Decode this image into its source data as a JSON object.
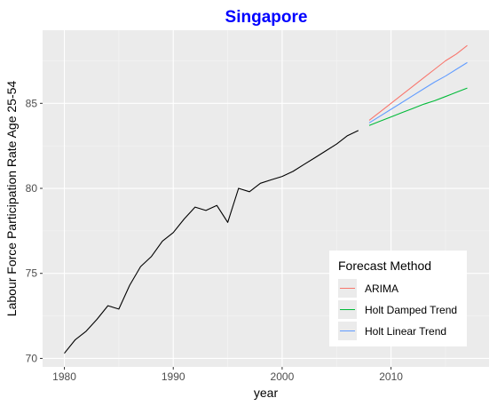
{
  "chart_data": {
    "type": "line",
    "title": "Singapore",
    "xlabel": "year",
    "ylabel": "Labour Force Participation Rate Age 25-54",
    "xlim": [
      1978,
      2019
    ],
    "ylim": [
      69.5,
      89.3
    ],
    "x_ticks": [
      1980,
      1990,
      2000,
      2010
    ],
    "y_ticks": [
      70,
      75,
      80,
      85
    ],
    "grid": true,
    "legend": {
      "title": "Forecast Method",
      "placement": "bottom-right",
      "entries": [
        "ARIMA",
        "Holt Damped Trend",
        "Holt Linear Trend"
      ]
    },
    "colors": {
      "title": "#0000FF",
      "panel": "#EBEBEB",
      "grid_major": "#FFFFFF",
      "grid_minor": "#F5F5F5",
      "history": "#000000",
      "ARIMA": "#F8766D",
      "Holt Damped Trend": "#00BA38",
      "Holt Linear Trend": "#619CFF"
    },
    "history": {
      "x": [
        1980,
        1981,
        1982,
        1983,
        1984,
        1985,
        1986,
        1987,
        1988,
        1989,
        1990,
        1991,
        1992,
        1993,
        1994,
        1995,
        1996,
        1997,
        1998,
        1999,
        2000,
        2001,
        2002,
        2003,
        2004,
        2005,
        2006,
        2007
      ],
      "values": [
        70.3,
        71.1,
        71.6,
        72.3,
        73.1,
        72.9,
        74.3,
        75.4,
        76.0,
        76.9,
        77.4,
        78.2,
        78.9,
        78.7,
        79.0,
        78.0,
        80.0,
        79.8,
        80.3,
        80.5,
        80.7,
        81.0,
        81.4,
        81.8,
        82.2,
        82.6,
        83.1,
        83.4
      ]
    },
    "series": [
      {
        "name": "ARIMA",
        "x": [
          2008,
          2009,
          2010,
          2011,
          2012,
          2013,
          2014,
          2015,
          2016,
          2017
        ],
        "values": [
          84.0,
          84.5,
          85.0,
          85.5,
          86.0,
          86.5,
          87.0,
          87.5,
          87.9,
          88.4
        ]
      },
      {
        "name": "Holt Damped Trend",
        "x": [
          2008,
          2009,
          2010,
          2011,
          2012,
          2013,
          2014,
          2015,
          2016,
          2017
        ],
        "values": [
          83.7,
          83.95,
          84.2,
          84.45,
          84.7,
          84.95,
          85.15,
          85.4,
          85.65,
          85.9
        ]
      },
      {
        "name": "Holt Linear Trend",
        "x": [
          2008,
          2009,
          2010,
          2011,
          2012,
          2013,
          2014,
          2015,
          2016,
          2017
        ],
        "values": [
          83.85,
          84.25,
          84.65,
          85.05,
          85.45,
          85.85,
          86.25,
          86.6,
          87.0,
          87.4
        ]
      }
    ]
  }
}
